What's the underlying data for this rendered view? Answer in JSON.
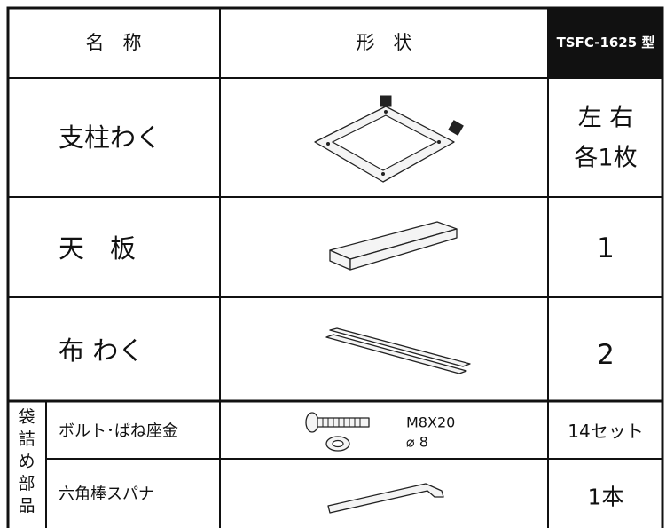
{
  "table": {
    "headers": [
      "名　称",
      "形　状",
      "TSFC-1625 型"
    ],
    "rows": [
      {
        "name": "支柱わく",
        "quantity": [
          "左 右",
          "各1枚"
        ]
      },
      {
        "name": "天　板",
        "quantity": [
          "1"
        ]
      },
      {
        "name": "布 わく",
        "quantity": [
          "2"
        ]
      },
      {
        "name": "ボルト･ばね座金",
        "spec": [
          "M8X20",
          "⌀ 8"
        ],
        "quantity": [
          "14セット"
        ]
      },
      {
        "name": "六角棒スパナ",
        "quantity": [
          "1本"
        ]
      }
    ],
    "group_label": [
      "袋",
      "詰",
      "め",
      "部",
      "品"
    ]
  }
}
